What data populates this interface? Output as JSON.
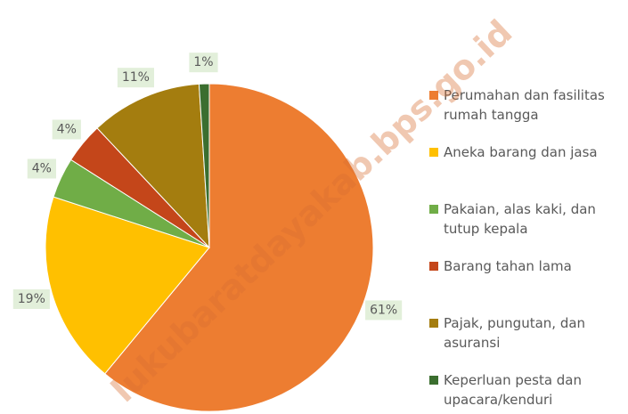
{
  "chart_data": {
    "type": "pie",
    "categories": [
      "Perumahan dan fasilitas rumah tangga",
      "Aneka barang dan jasa",
      "Pakaian, alas kaki, dan tutup kepala",
      "Barang tahan lama",
      "Pajak, pungutan, dan asuransi",
      "Keperluan pesta dan upacara/kenduri"
    ],
    "values": [
      61,
      19,
      4,
      4,
      11,
      1
    ],
    "value_labels": [
      "61%",
      "19%",
      "4%",
      "4%",
      "11%",
      "1%"
    ],
    "colors": [
      "#ed7d31",
      "#ffc000",
      "#70ad47",
      "#c4461a",
      "#a47d0f",
      "#3b6e2f"
    ],
    "legend": "right",
    "watermark": "lukubaratdayakab.bps.go.id"
  }
}
